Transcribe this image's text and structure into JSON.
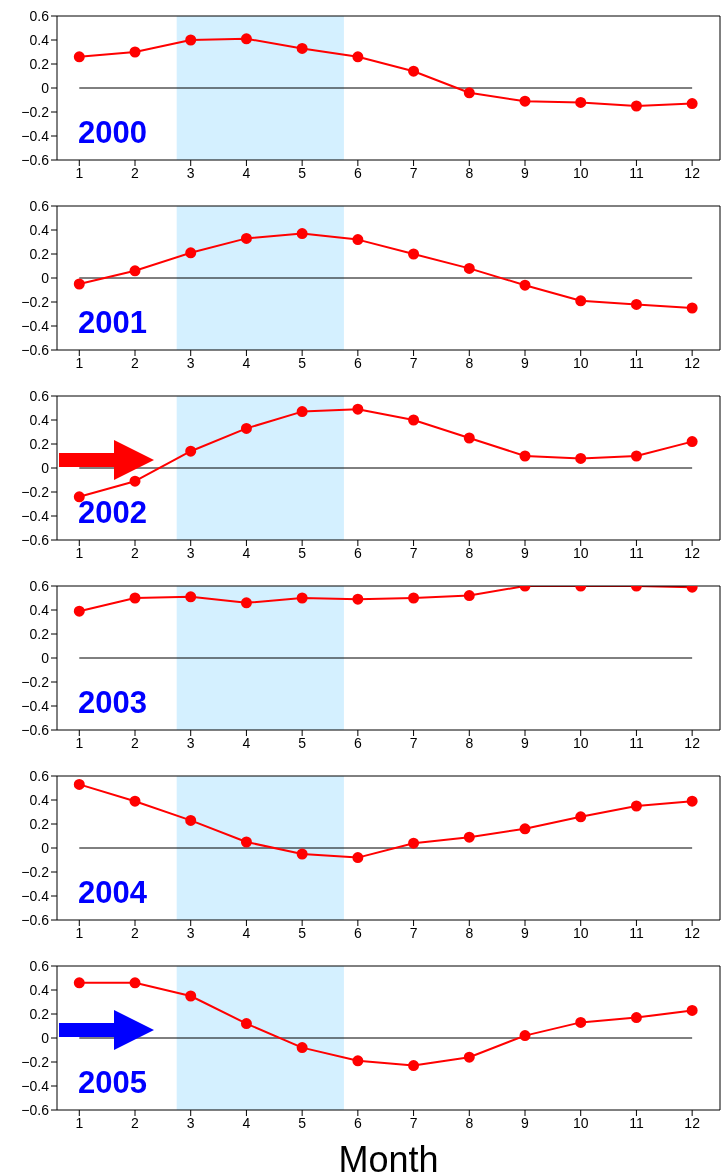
{
  "chart_data": [
    {
      "type": "line",
      "x": [
        1,
        2,
        3,
        4,
        5,
        6,
        7,
        8,
        9,
        10,
        11,
        12
      ],
      "xlim": [
        0.6,
        12.5
      ],
      "xticks": [
        1,
        2,
        3,
        4,
        5,
        6,
        7,
        8,
        9,
        10,
        11,
        12
      ],
      "ylim": [
        -0.6,
        0.6
      ],
      "yticks": [
        -0.6,
        -0.4,
        -0.2,
        0,
        0.2,
        0.4,
        0.6
      ],
      "marker": "circle",
      "line_style": "solid",
      "grid": false,
      "legend": false,
      "series": [
        {
          "color": "#ff0000",
          "values": [
            0.26,
            0.3,
            0.4,
            0.41,
            0.33,
            0.26,
            0.14,
            -0.04,
            -0.11,
            -0.12,
            -0.15,
            -0.13
          ]
        }
      ],
      "ref_lines": [
        {
          "axis": "y",
          "value": 0,
          "color": "#000000"
        }
      ],
      "bands": [
        {
          "axis": "x",
          "from": 2.75,
          "to": 5.75,
          "color": "#cceeff"
        }
      ],
      "annotations": [
        "2000"
      ]
    },
    {
      "type": "line",
      "x": [
        1,
        2,
        3,
        4,
        5,
        6,
        7,
        8,
        9,
        10,
        11,
        12
      ],
      "xlim": [
        0.6,
        12.5
      ],
      "xticks": [
        1,
        2,
        3,
        4,
        5,
        6,
        7,
        8,
        9,
        10,
        11,
        12
      ],
      "ylim": [
        -0.6,
        0.6
      ],
      "yticks": [
        -0.6,
        -0.4,
        -0.2,
        0,
        0.2,
        0.4,
        0.6
      ],
      "marker": "circle",
      "line_style": "solid",
      "grid": false,
      "legend": false,
      "series": [
        {
          "color": "#ff0000",
          "values": [
            -0.05,
            0.06,
            0.21,
            0.33,
            0.37,
            0.32,
            0.2,
            0.08,
            -0.06,
            -0.19,
            -0.22,
            -0.25
          ]
        }
      ],
      "ref_lines": [
        {
          "axis": "y",
          "value": 0,
          "color": "#000000"
        }
      ],
      "bands": [
        {
          "axis": "x",
          "from": 2.75,
          "to": 5.75,
          "color": "#cceeff"
        }
      ],
      "annotations": [
        "2001"
      ]
    },
    {
      "type": "line",
      "x": [
        1,
        2,
        3,
        4,
        5,
        6,
        7,
        8,
        9,
        10,
        11,
        12
      ],
      "xlim": [
        0.6,
        12.5
      ],
      "xticks": [
        1,
        2,
        3,
        4,
        5,
        6,
        7,
        8,
        9,
        10,
        11,
        12
      ],
      "ylim": [
        -0.6,
        0.6
      ],
      "yticks": [
        -0.6,
        -0.4,
        -0.2,
        0,
        0.2,
        0.4,
        0.6
      ],
      "marker": "circle",
      "line_style": "solid",
      "grid": false,
      "legend": false,
      "series": [
        {
          "color": "#ff0000",
          "values": [
            -0.24,
            -0.11,
            0.14,
            0.33,
            0.47,
            0.49,
            0.4,
            0.25,
            0.1,
            0.08,
            0.1,
            0.22
          ]
        }
      ],
      "ref_lines": [
        {
          "axis": "y",
          "value": 0,
          "color": "#000000"
        }
      ],
      "bands": [
        {
          "axis": "x",
          "from": 2.75,
          "to": 5.75,
          "color": "#cceeff"
        }
      ],
      "annotations": [
        "2002"
      ]
    },
    {
      "type": "line",
      "x": [
        1,
        2,
        3,
        4,
        5,
        6,
        7,
        8,
        9,
        10,
        11,
        12
      ],
      "xlim": [
        0.6,
        12.5
      ],
      "xticks": [
        1,
        2,
        3,
        4,
        5,
        6,
        7,
        8,
        9,
        10,
        11,
        12
      ],
      "ylim": [
        -0.6,
        0.6
      ],
      "yticks": [
        -0.6,
        -0.4,
        -0.2,
        0,
        0.2,
        0.4,
        0.6
      ],
      "marker": "circle",
      "line_style": "solid",
      "grid": false,
      "legend": false,
      "series": [
        {
          "color": "#ff0000",
          "values": [
            0.39,
            0.5,
            0.51,
            0.46,
            0.5,
            0.49,
            0.5,
            0.52,
            0.6,
            0.6,
            0.6,
            0.59
          ]
        }
      ],
      "ref_lines": [
        {
          "axis": "y",
          "value": 0,
          "color": "#000000"
        }
      ],
      "bands": [
        {
          "axis": "x",
          "from": 2.75,
          "to": 5.75,
          "color": "#cceeff"
        }
      ],
      "annotations": [
        "2003"
      ]
    },
    {
      "type": "line",
      "x": [
        1,
        2,
        3,
        4,
        5,
        6,
        7,
        8,
        9,
        10,
        11,
        12
      ],
      "xlim": [
        0.6,
        12.5
      ],
      "xticks": [
        1,
        2,
        3,
        4,
        5,
        6,
        7,
        8,
        9,
        10,
        11,
        12
      ],
      "ylim": [
        -0.6,
        0.6
      ],
      "yticks": [
        -0.6,
        -0.4,
        -0.2,
        0,
        0.2,
        0.4,
        0.6
      ],
      "marker": "circle",
      "line_style": "solid",
      "grid": false,
      "legend": false,
      "series": [
        {
          "color": "#ff0000",
          "values": [
            0.53,
            0.39,
            0.23,
            0.05,
            -0.05,
            -0.08,
            0.04,
            0.09,
            0.16,
            0.26,
            0.35,
            0.39
          ]
        }
      ],
      "ref_lines": [
        {
          "axis": "y",
          "value": 0,
          "color": "#000000"
        }
      ],
      "bands": [
        {
          "axis": "x",
          "from": 2.75,
          "to": 5.75,
          "color": "#cceeff"
        }
      ],
      "annotations": [
        "2004"
      ]
    },
    {
      "type": "line",
      "x": [
        1,
        2,
        3,
        4,
        5,
        6,
        7,
        8,
        9,
        10,
        11,
        12
      ],
      "xlim": [
        0.6,
        12.5
      ],
      "xticks": [
        1,
        2,
        3,
        4,
        5,
        6,
        7,
        8,
        9,
        10,
        11,
        12
      ],
      "ylim": [
        -0.6,
        0.6
      ],
      "yticks": [
        -0.6,
        -0.4,
        -0.2,
        0,
        0.2,
        0.4,
        0.6
      ],
      "marker": "circle",
      "line_style": "solid",
      "grid": false,
      "legend": false,
      "xlabel": "Month",
      "series": [
        {
          "color": "#ff0000",
          "values": [
            0.46,
            0.46,
            0.35,
            0.12,
            -0.08,
            -0.19,
            -0.23,
            -0.16,
            0.02,
            0.13,
            0.17,
            0.23
          ]
        }
      ],
      "ref_lines": [
        {
          "axis": "y",
          "value": 0,
          "color": "#000000"
        }
      ],
      "bands": [
        {
          "axis": "x",
          "from": 2.75,
          "to": 5.75,
          "color": "#cceeff"
        }
      ],
      "annotations": [
        "2005"
      ]
    }
  ]
}
